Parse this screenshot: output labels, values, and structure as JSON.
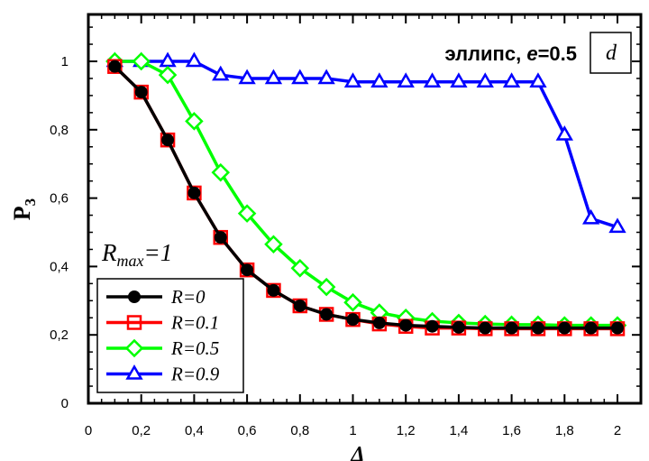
{
  "chart_data": {
    "type": "line",
    "title": "",
    "xlabel": "Δ",
    "ylabel": "P",
    "ylabel_subscript": "3",
    "xlim": [
      0,
      2.05
    ],
    "ylim": [
      0,
      1.12
    ],
    "x_ticks": [
      0,
      0.2,
      0.4,
      0.6,
      0.8,
      1,
      1.2,
      1.4,
      1.6,
      1.8,
      2
    ],
    "x_tick_labels": [
      "0",
      "0,2",
      "0,4",
      "0,6",
      "0,8",
      "1",
      "1,2",
      "1,4",
      "1,6",
      "1,8",
      "2"
    ],
    "y_ticks": [
      0,
      0.2,
      0.4,
      0.6,
      0.8,
      1
    ],
    "y_tick_labels": [
      "0",
      "0,2",
      "0,4",
      "0,6",
      "0,8",
      "1"
    ],
    "grid": false,
    "legend_position": "bottom-left",
    "annotations": {
      "shape_label": "эллипс, ",
      "shape_e": "e",
      "shape_value": "=0.5",
      "panel_label": "d",
      "rmax_base": "R",
      "rmax_sub": "max",
      "rmax_value": "=1"
    },
    "series": [
      {
        "name": "R=0",
        "color": "#000000",
        "marker": "circle",
        "x": [
          0.1,
          0.2,
          0.3,
          0.4,
          0.5,
          0.6,
          0.7,
          0.8,
          0.9,
          1.0,
          1.1,
          1.2,
          1.3,
          1.4,
          1.5,
          1.6,
          1.7,
          1.8,
          1.9,
          2.0
        ],
        "y": [
          0.985,
          0.91,
          0.77,
          0.615,
          0.485,
          0.39,
          0.33,
          0.285,
          0.26,
          0.245,
          0.235,
          0.228,
          0.225,
          0.222,
          0.22,
          0.22,
          0.22,
          0.22,
          0.22,
          0.22
        ]
      },
      {
        "name": "R=0.1",
        "color": "#ff0000",
        "marker": "square",
        "x": [
          0.1,
          0.2,
          0.3,
          0.4,
          0.5,
          0.6,
          0.7,
          0.8,
          0.9,
          1.0,
          1.1,
          1.2,
          1.3,
          1.4,
          1.5,
          1.6,
          1.7,
          1.8,
          1.9,
          2.0
        ],
        "y": [
          0.985,
          0.91,
          0.77,
          0.615,
          0.485,
          0.39,
          0.33,
          0.285,
          0.26,
          0.245,
          0.232,
          0.225,
          0.22,
          0.22,
          0.218,
          0.218,
          0.218,
          0.218,
          0.218,
          0.218
        ]
      },
      {
        "name": "R=0.5",
        "color": "#00ff00",
        "marker": "diamond",
        "x": [
          0.1,
          0.2,
          0.3,
          0.4,
          0.5,
          0.6,
          0.7,
          0.8,
          0.9,
          1.0,
          1.1,
          1.2,
          1.3,
          1.4,
          1.5,
          1.6,
          1.7,
          1.8,
          1.9,
          2.0
        ],
        "y": [
          1.0,
          1.0,
          0.96,
          0.825,
          0.675,
          0.555,
          0.465,
          0.395,
          0.34,
          0.295,
          0.265,
          0.25,
          0.24,
          0.235,
          0.232,
          0.23,
          0.23,
          0.228,
          0.228,
          0.228
        ]
      },
      {
        "name": "R=0.9",
        "color": "#0000ff",
        "marker": "triangle",
        "x": [
          0.1,
          0.2,
          0.3,
          0.4,
          0.5,
          0.6,
          0.7,
          0.8,
          0.9,
          1.0,
          1.1,
          1.2,
          1.3,
          1.4,
          1.5,
          1.6,
          1.7,
          1.8,
          1.9,
          2.0
        ],
        "y": [
          1.0,
          1.0,
          1.0,
          1.0,
          0.96,
          0.95,
          0.95,
          0.95,
          0.95,
          0.94,
          0.94,
          0.94,
          0.94,
          0.94,
          0.94,
          0.94,
          0.94,
          0.785,
          0.54,
          0.515
        ]
      }
    ]
  }
}
